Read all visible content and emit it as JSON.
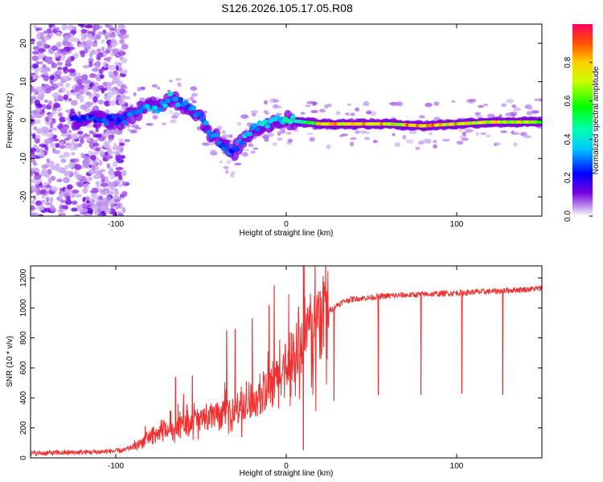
{
  "title": "S126.2026.105.17.05.R08",
  "colors": {
    "snr_line": "#ee3030",
    "axis": "#000000"
  },
  "chart_data": [
    {
      "type": "heatmap",
      "xlabel": "Height of straight line (km)",
      "ylabel": "Frequency (Hz)",
      "xlim": [
        -150,
        150
      ],
      "ylim": [
        -25,
        25
      ],
      "x_ticks": [
        -100,
        0,
        100
      ],
      "x_tick_labels": [
        "-100",
        "0",
        "100"
      ],
      "y_ticks": [
        -20,
        -10,
        0,
        10,
        20
      ],
      "y_tick_labels": [
        "-20",
        "-10",
        "0",
        "10",
        "20"
      ],
      "colorbar": {
        "label": "Normalized spectral amplitude",
        "range": [
          0,
          1
        ],
        "ticks": [
          0.0,
          0.2,
          0.4,
          0.6,
          0.8
        ],
        "tick_labels": [
          "0.0",
          "0.2",
          "0.4",
          "0.6",
          "0.8"
        ],
        "colormap": "rainbow"
      },
      "ridge": {
        "x": [
          -125,
          -115,
          -105,
          -95,
          -88,
          -82,
          -75,
          -68,
          -60,
          -52,
          -45,
          -38,
          -32,
          -25,
          -18,
          -10,
          -5,
          0,
          10,
          20,
          40,
          60,
          80,
          100,
          120,
          150
        ],
        "freq": [
          0,
          0,
          0,
          0,
          2,
          4,
          3,
          6,
          4,
          2,
          -3,
          -6,
          -9,
          -5,
          -2,
          -1,
          0,
          0,
          -0.5,
          -1,
          -1,
          -1,
          -1.5,
          -1,
          -0.5,
          -0.5
        ],
        "amplitude": [
          0.25,
          0.3,
          0.3,
          0.3,
          0.35,
          0.4,
          0.4,
          0.4,
          0.35,
          0.35,
          0.35,
          0.35,
          0.3,
          0.4,
          0.4,
          0.45,
          0.45,
          0.5,
          0.6,
          0.85,
          0.95,
          0.9,
          0.95,
          0.9,
          0.85,
          0.8
        ]
      }
    },
    {
      "type": "line",
      "xlabel": "Height of straight line (km)",
      "ylabel": "SNR (10 * v/v)",
      "xlim": [
        -150,
        150
      ],
      "ylim": [
        0,
        1280
      ],
      "x_ticks": [
        -100,
        0,
        100
      ],
      "x_tick_labels": [
        "-100",
        "0",
        "100"
      ],
      "y_ticks": [
        0,
        200,
        400,
        600,
        800,
        1000,
        1200
      ],
      "y_tick_labels": [
        "0",
        "200",
        "400",
        "600",
        "800",
        "1000",
        "1200"
      ],
      "trend": {
        "x": [
          -150,
          -110,
          -95,
          -85,
          -80,
          -70,
          -60,
          -50,
          -40,
          -30,
          -20,
          -10,
          -5,
          0,
          5,
          10,
          15,
          20,
          25,
          30,
          35,
          40,
          50,
          60,
          80,
          100,
          120,
          150
        ],
        "y": [
          30,
          40,
          50,
          100,
          140,
          180,
          230,
          250,
          280,
          310,
          360,
          430,
          500,
          600,
          680,
          760,
          840,
          920,
          980,
          1020,
          1050,
          1060,
          1070,
          1080,
          1090,
          1100,
          1110,
          1130
        ]
      },
      "spikes": [
        {
          "x": -65,
          "y": 540
        },
        {
          "x": -55,
          "y": 550
        },
        {
          "x": -35,
          "y": 850
        },
        {
          "x": -30,
          "y": 860
        },
        {
          "x": -20,
          "y": 930
        },
        {
          "x": -10,
          "y": 1020
        },
        {
          "x": -7,
          "y": 1150
        },
        {
          "x": 10,
          "y": 1280
        }
      ],
      "dips": [
        {
          "x": 10,
          "y": 50
        },
        {
          "x": 28,
          "y": 380
        },
        {
          "x": 54,
          "y": 420
        },
        {
          "x": 79,
          "y": 420
        },
        {
          "x": 103,
          "y": 430
        },
        {
          "x": 127,
          "y": 420
        }
      ]
    }
  ]
}
